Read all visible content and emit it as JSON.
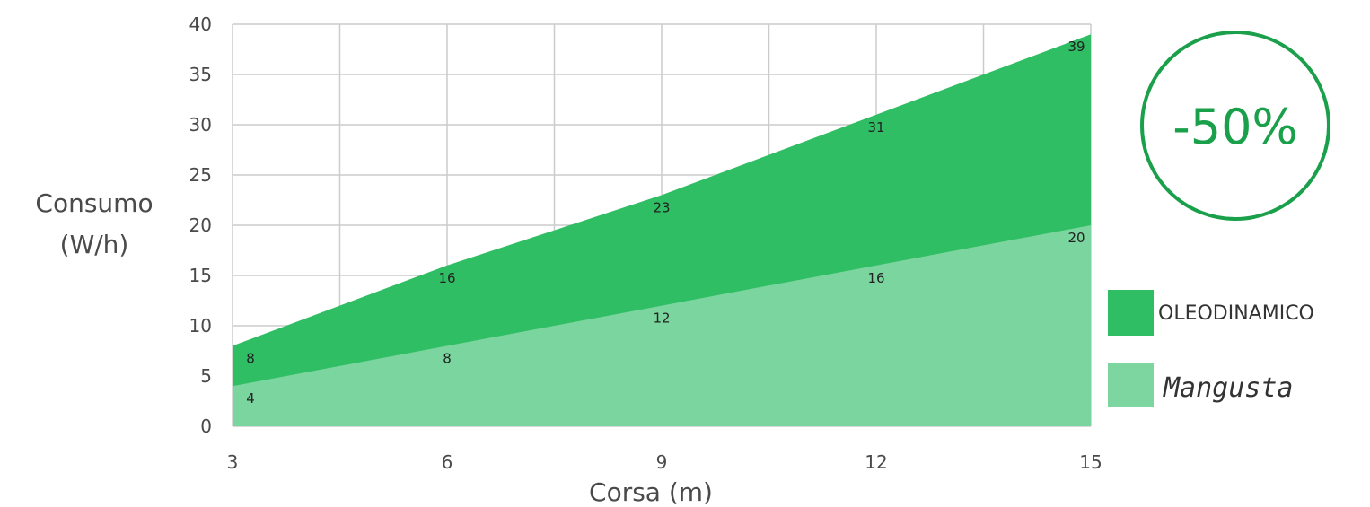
{
  "chart_data": {
    "type": "area",
    "x": [
      3,
      6,
      9,
      12,
      15
    ],
    "series": [
      {
        "name": "OLEODINAMICO",
        "values": [
          8,
          16,
          23,
          31,
          39
        ],
        "color": "#2fbe63"
      },
      {
        "name": "Mangusta",
        "values": [
          4,
          8,
          12,
          16,
          20
        ],
        "color": "#7dd6a0"
      }
    ],
    "data_labels": [
      [
        "8",
        "16",
        "23",
        "31",
        "39"
      ],
      [
        "4",
        "8",
        "12",
        "16",
        "20"
      ]
    ],
    "xlabel": "Corsa (m)",
    "ylabel_line1": "Consumo",
    "ylabel_line2": "(W/h)",
    "xlim": [
      3,
      15
    ],
    "ylim": [
      0,
      40
    ],
    "xticks": [
      3,
      6,
      9,
      12,
      15
    ],
    "xtick_labels": [
      "3",
      "6",
      "9",
      "12",
      "15"
    ],
    "yticks": [
      0,
      5,
      10,
      15,
      20,
      25,
      30,
      35,
      40
    ],
    "ytick_labels": [
      "0",
      "5",
      "10",
      "15",
      "20",
      "25",
      "30",
      "35",
      "40"
    ],
    "vertical_gridlines": [
      3,
      4.5,
      6,
      7.5,
      9,
      10.5,
      12,
      13.5,
      15
    ],
    "grid": true,
    "legend_position": "right"
  },
  "badge": {
    "text": "-50%",
    "color": "#1aa04a"
  },
  "colors": {
    "grid": "#cccccc",
    "axis_text": "#4a4a4a"
  }
}
